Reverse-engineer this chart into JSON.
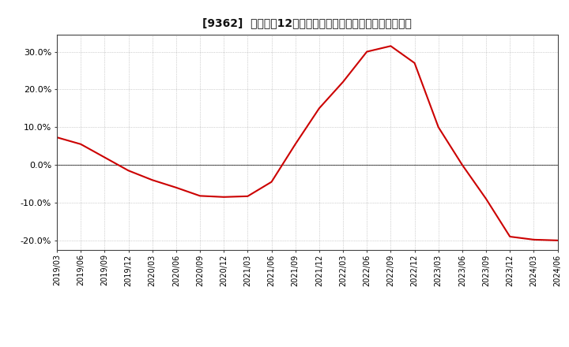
{
  "title": "[9362]  売上高の12か月移動合計の対前年同期増減率の推移",
  "line_color": "#cc0000",
  "background_color": "#ffffff",
  "plot_bg_color": "#ffffff",
  "grid_color": "#aaaaaa",
  "ylim": [
    -0.225,
    0.345
  ],
  "yticks": [
    -0.2,
    -0.1,
    0.0,
    0.1,
    0.2,
    0.3
  ],
  "dates": [
    "2019/03",
    "2019/06",
    "2019/09",
    "2019/12",
    "2020/03",
    "2020/06",
    "2020/09",
    "2020/12",
    "2021/03",
    "2021/06",
    "2021/09",
    "2021/12",
    "2022/03",
    "2022/06",
    "2022/09",
    "2022/12",
    "2023/03",
    "2023/06",
    "2023/09",
    "2023/12",
    "2024/03",
    "2024/06"
  ],
  "values": [
    0.073,
    0.055,
    0.02,
    -0.015,
    -0.04,
    -0.06,
    -0.082,
    -0.085,
    -0.083,
    -0.045,
    0.055,
    0.15,
    0.22,
    0.3,
    0.315,
    0.27,
    0.1,
    0.0,
    -0.09,
    -0.19,
    -0.198,
    -0.2
  ]
}
